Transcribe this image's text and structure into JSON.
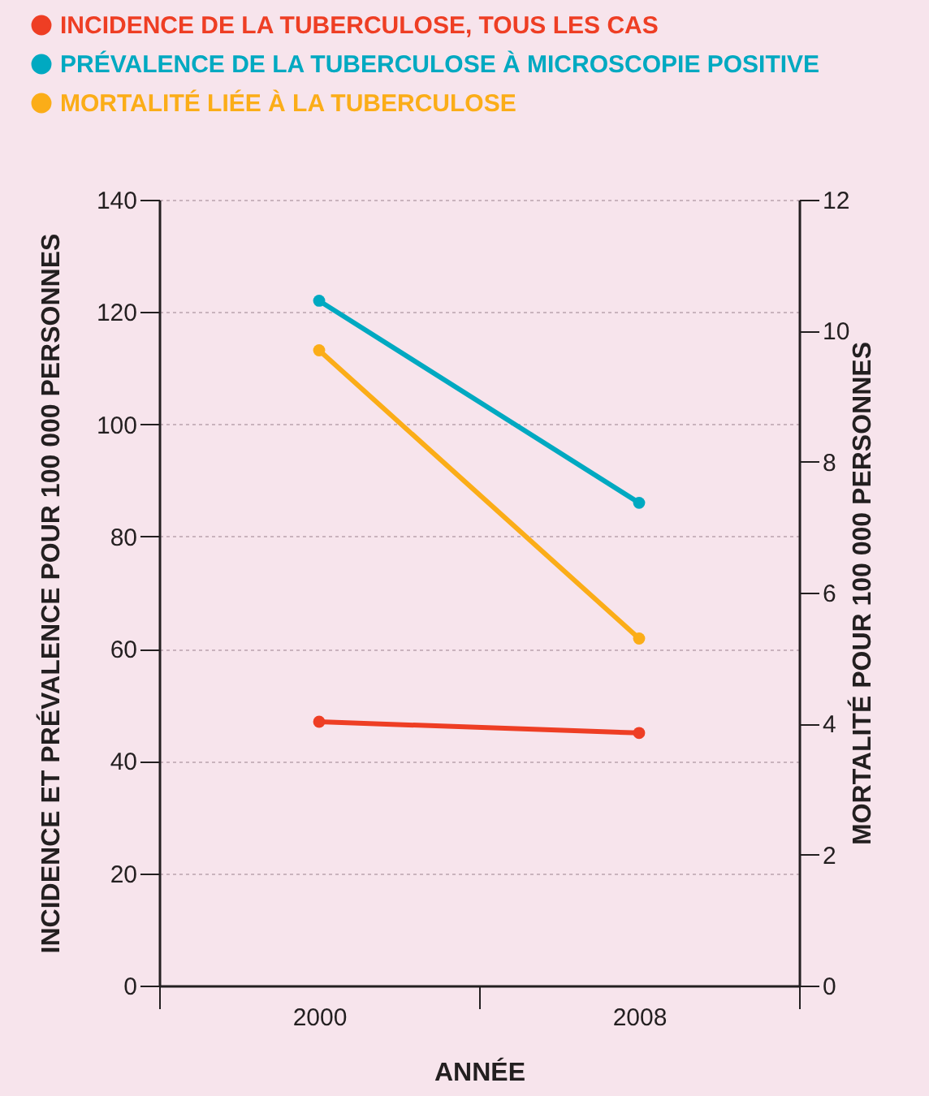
{
  "chart_data": {
    "type": "line",
    "xlabel": "ANNÉE",
    "ylabel": "INCIDENCE ET PRÉVALENCE POUR 100 000 PERSONNES",
    "y2label": "MORTALITÉ POUR 100 000 PERSONNES",
    "categories": [
      "2000",
      "2008"
    ],
    "series": [
      {
        "name": "INCIDENCE DE LA TUBERCULOSE, TOUS LES CAS",
        "color": "#ee3e24",
        "values": [
          47,
          45
        ]
      },
      {
        "name": "PRÉVALENCE DE LA TUBERCULOSE À MICROSCOPIE POSITIVE",
        "color": "#00a9c1",
        "values": [
          122,
          86
        ]
      },
      {
        "name": "MORTALITÉ LIÉE À LA TUBERCULOSE",
        "color": "#fbad18",
        "values": [
          9.7,
          5.3
        ],
        "axis": "y2"
      }
    ],
    "ylim": [
      0,
      140
    ],
    "yticks": [
      0,
      20,
      40,
      60,
      80,
      100,
      120,
      140
    ],
    "y2lim": [
      0,
      12
    ],
    "y2ticks": [
      0,
      2,
      4,
      6,
      8,
      10,
      12
    ],
    "grid": "y",
    "legend": "top left",
    "marker": "circle",
    "line_style": "solid"
  }
}
